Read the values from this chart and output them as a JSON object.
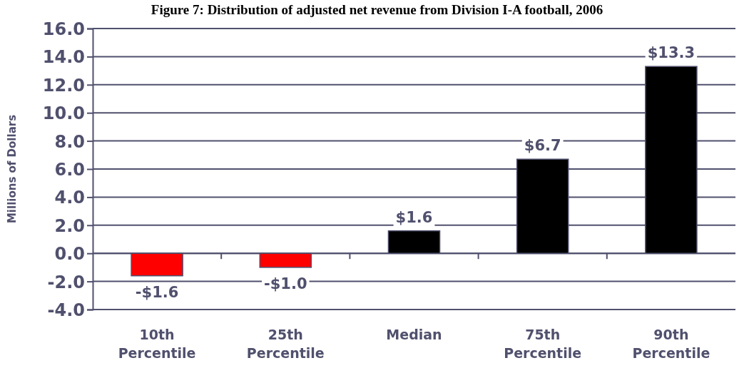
{
  "chart_data": {
    "type": "bar",
    "title": "Figure 7: Distribution of adjusted net revenue from Division I-A football, 2006",
    "ylabel": "Millions of Dollars",
    "categories": [
      "10th Percentile",
      "25th Percentile",
      "Median",
      "75th Percentile",
      "90th Percentile"
    ],
    "values": [
      -1.6,
      -1.0,
      1.6,
      6.7,
      13.3
    ],
    "colors": [
      "#ff0000",
      "#ff0000",
      "#000000",
      "#000000",
      "#000000"
    ],
    "value_labels": [
      "-$1.6",
      "-$1.0",
      "$1.6",
      "$6.7",
      "$13.3"
    ],
    "ylim": [
      -4,
      16
    ],
    "yticks": [
      {
        "value": -4,
        "label": "-4.0"
      },
      {
        "value": -2,
        "label": "-2.0"
      },
      {
        "value": 0,
        "label": "0.0"
      },
      {
        "value": 2,
        "label": "2.0"
      },
      {
        "value": 4,
        "label": "4.0"
      },
      {
        "value": 6,
        "label": "6.0"
      },
      {
        "value": 8,
        "label": "8.0"
      },
      {
        "value": 10,
        "label": "10.0"
      },
      {
        "value": 12,
        "label": "12.0"
      },
      {
        "value": 14,
        "label": "14.0"
      },
      {
        "value": 16,
        "label": "16.0"
      }
    ],
    "grid": "y"
  }
}
